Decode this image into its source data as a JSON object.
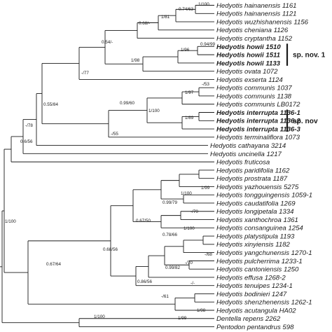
{
  "taxa": [
    "Hedyotis hainanensis 1161",
    "Hedyotis hainanensis 1121",
    "Hedyotis wuzhishanensis 1156",
    "Hedyotis cheniana 1126",
    "Hedyotis cryptantha 1152",
    "Hedyotis howii 1510",
    "Hedyotis howii 1511",
    "Hedyotis howii 1133",
    "Hedyotis ovata 1072",
    "Hedyotis exserta 1124",
    "Hedyotis communis 1037",
    "Hedyotis communis 1138",
    "Hedyotis communis LB0172",
    "Hedyotis interrupta 1136-1",
    "Hedyotis interrupta 1136-2",
    "Hedyotis interrupta 1136-3",
    "Hedyotis terminaliflora 1073",
    "Hedyotis cathayana 3214",
    "Hedyotis uncinella 1217",
    "Hedyotis fruticosa",
    "Hedyotis paridifolia 1162",
    "Hedyotis prostrata 1187",
    "Hedyotis yazhouensis 5275",
    "Hedyotis tongguingensis 1059-1",
    "Hedyotis caudatifolia 1269",
    "Hedyotis longipetala 1334",
    "Hedyotis xanthochroa 1361",
    "Hedyotis consanguinea 1254",
    "Hedyotis platystipula 1193",
    "Hedyotis xinyiensis 1182",
    "Hedyotis yangchunensis 1270-1",
    "Hedyotis pulcherrima 1233-1",
    "Hedyotis cantoniensis 1250",
    "Hedyotis effusa 1268-2",
    "Hedyotis tenuipes 1234-1",
    "Hedyotis bodinieri 1247",
    "Hedyotis shenzhenensis 1262-1",
    "Hedyotis acutangula HA02",
    "Dentella repens 2262",
    "Pentodon pentandrus 598"
  ],
  "bold_taxa": [
    5,
    6,
    7,
    13,
    14,
    15
  ],
  "clade_labels": [
    {
      "text": "sp. nov. 1",
      "first": 5,
      "last": 7
    },
    {
      "text": "sp. nov",
      "first": 13,
      "last": 15
    }
  ],
  "nodes": [
    {
      "id": "hain",
      "children": [
        0,
        1
      ],
      "support": "1/100"
    },
    {
      "id": "hainw",
      "children": [
        "hain",
        2
      ],
      "support": "0.74/63"
    },
    {
      "id": "g1",
      "children": [
        "hainw",
        3
      ],
      "support": "1/81"
    },
    {
      "id": "g2",
      "children": [
        "g1",
        4
      ],
      "support": "0.68/-"
    },
    {
      "id": "how_a",
      "children": [
        5,
        6
      ],
      "support": "0.94/99"
    },
    {
      "id": "how",
      "children": [
        "how_a",
        7
      ],
      "support": "1/96"
    },
    {
      "id": "howov",
      "children": [
        "how",
        8
      ],
      "support": "1/98"
    },
    {
      "id": "A",
      "children": [
        "g2",
        "howov"
      ],
      "support": "0.54/-"
    },
    {
      "id": "B",
      "children": [
        "A",
        9
      ],
      "support": "-/77"
    },
    {
      "id": "com_a",
      "children": [
        10,
        11
      ],
      "support": "-/53"
    },
    {
      "id": "com",
      "children": [
        "com_a",
        12
      ],
      "support": "1/97"
    },
    {
      "id": "int_a",
      "children": [
        13,
        14
      ],
      "support": ""
    },
    {
      "id": "int",
      "children": [
        "int_a",
        15
      ],
      "support": "1/89"
    },
    {
      "id": "ci",
      "children": [
        "com",
        "int"
      ],
      "support": "1/100"
    },
    {
      "id": "C",
      "children": [
        "ci",
        16
      ],
      "support": "0.99/60"
    },
    {
      "id": "D",
      "children": [
        "B",
        "C"
      ],
      "support": "0.55/84"
    },
    {
      "id": "E",
      "children": [
        "D",
        17
      ],
      "support": "-/55"
    },
    {
      "id": "F",
      "children": [
        "E",
        18
      ],
      "support": "-/78"
    },
    {
      "id": "G",
      "children": [
        "F",
        19
      ],
      "support": "0.6/56"
    },
    {
      "id": "par",
      "children": [
        20,
        21
      ],
      "support": "1/99"
    },
    {
      "id": "par2",
      "children": [
        "par",
        22
      ],
      "support": "1/100"
    },
    {
      "id": "tc",
      "children": [
        23,
        24
      ],
      "support": "-/70"
    },
    {
      "id": "P1",
      "children": [
        "par2",
        "tc"
      ],
      "support": "0.99/79"
    },
    {
      "id": "lx",
      "children": [
        25,
        26
      ],
      "support": "1/100"
    },
    {
      "id": "lxc",
      "children": [
        "lx",
        27
      ],
      "support": "0.78/66"
    },
    {
      "id": "P2",
      "children": [
        "P1",
        "lxc"
      ],
      "support": "0.67/50"
    },
    {
      "id": "px",
      "children": [
        28,
        29
      ],
      "support": "-/68"
    },
    {
      "id": "pxy",
      "children": [
        "px",
        30
      ],
      "support": "-/70"
    },
    {
      "id": "pc",
      "children": [
        31,
        32
      ],
      "support": "-/-"
    },
    {
      "id": "Q",
      "children": [
        "pxy",
        "pc"
      ],
      "support": "0.99/82"
    },
    {
      "id": "Q2",
      "children": [
        "Q",
        33
      ],
      "support": "-/61"
    },
    {
      "id": "Q3",
      "children": [
        "Q2",
        34
      ],
      "support": "0.86/56"
    },
    {
      "id": "P3",
      "children": [
        "P2",
        "Q3"
      ],
      "support": "0.68/56"
    },
    {
      "id": "bs",
      "children": [
        35,
        36
      ],
      "support": "1/98"
    },
    {
      "id": "bsa",
      "children": [
        "bs",
        37
      ],
      "support": "1/99"
    },
    {
      "id": "H",
      "children": [
        "P3",
        "bsa"
      ],
      "support": "0.67/64"
    },
    {
      "id": "I",
      "children": [
        "G",
        "H"
      ],
      "support": "1/100"
    },
    {
      "id": "J",
      "children": [
        38,
        39
      ],
      "support": "1/100"
    },
    {
      "id": "root",
      "children": [
        "I",
        "J"
      ],
      "support": ""
    }
  ],
  "colors": {
    "line": "#1a1a1a",
    "text": "#1a1a1a"
  }
}
